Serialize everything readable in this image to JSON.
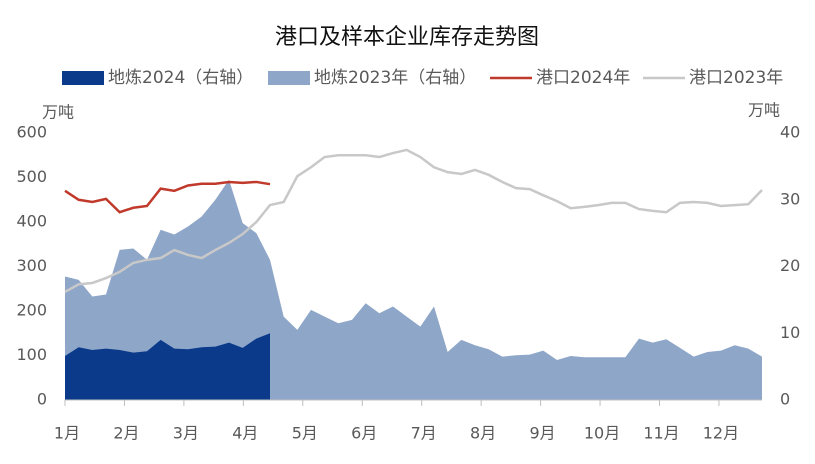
{
  "chart_data": {
    "type": "line-area",
    "title": "港口及样本企业库存走势图",
    "y_label": "万吨",
    "y2_label": "万吨",
    "x": [
      1,
      2,
      3,
      4,
      5,
      6,
      7,
      8,
      9,
      10,
      11,
      12,
      13,
      14,
      15,
      16,
      17,
      18,
      19,
      20,
      21,
      22,
      23,
      24,
      25,
      26,
      27,
      28,
      29,
      30,
      31,
      32,
      33,
      34,
      35,
      36,
      37,
      38,
      39,
      40,
      41,
      42,
      43,
      44,
      45,
      46,
      47,
      48,
      49,
      50,
      51,
      52
    ],
    "xlim": [
      1,
      52
    ],
    "xticks": [
      {
        "value": 1,
        "label": "1月"
      },
      {
        "value": 5.35,
        "label": "2月"
      },
      {
        "value": 9.7,
        "label": "3月"
      },
      {
        "value": 14.05,
        "label": "4月"
      },
      {
        "value": 18.4,
        "label": "5月"
      },
      {
        "value": 22.75,
        "label": "6月"
      },
      {
        "value": 27.1,
        "label": "7月"
      },
      {
        "value": 31.45,
        "label": "8月"
      },
      {
        "value": 35.8,
        "label": "9月"
      },
      {
        "value": 40.15,
        "label": "10月"
      },
      {
        "value": 44.5,
        "label": "11月"
      },
      {
        "value": 48.85,
        "label": "12月"
      }
    ],
    "ylim": [
      0,
      600
    ],
    "yticks": [
      0,
      100,
      200,
      300,
      400,
      500,
      600
    ],
    "y2lim": [
      0,
      40
    ],
    "y2ticks": [
      0,
      10,
      20,
      30,
      40
    ],
    "series": [
      {
        "name": "地炼2023年（右轴）",
        "color": "#8ea6c8",
        "style": "area",
        "axis": "y2",
        "values": [
          18.5,
          18,
          15.5,
          15.8,
          22.5,
          22.7,
          21,
          25.5,
          24.8,
          26,
          27.5,
          30,
          33,
          26.5,
          25,
          21,
          12.5,
          10.5,
          13.5,
          12.5,
          11.5,
          12,
          14.5,
          13,
          14,
          12.5,
          11,
          14,
          7.2,
          9,
          8.2,
          7.6,
          6.5,
          6.7,
          6.8,
          7.4,
          6,
          6.6,
          6.4,
          6.4,
          6.4,
          6.4,
          9.2,
          8.6,
          9.1,
          7.8,
          6.5,
          7.2,
          7.4,
          8.2,
          7.7,
          6.5
        ]
      },
      {
        "name": "地炼2024（右轴）",
        "color": "#0b3a8a",
        "style": "area",
        "axis": "y2",
        "values": [
          6.6,
          7.9,
          7.5,
          7.7,
          7.5,
          7.1,
          7.3,
          9,
          7.7,
          7.6,
          7.9,
          8,
          8.6,
          7.8,
          9.2,
          10,
          null,
          null,
          null,
          null,
          null,
          null,
          null,
          null,
          null,
          null,
          null,
          null,
          null,
          null,
          null,
          null,
          null,
          null,
          null,
          null,
          null,
          null,
          null,
          null,
          null,
          null,
          null,
          null,
          null,
          null,
          null,
          null,
          null,
          null,
          null,
          null
        ]
      },
      {
        "name": "港口2023年",
        "color": "#c8c8c8",
        "style": "line",
        "values": [
          243,
          260,
          263,
          274,
          288,
          308,
          315,
          319,
          337,
          326,
          319,
          337,
          353,
          373,
          400,
          438,
          445,
          503,
          523,
          546,
          550,
          550,
          550,
          546,
          555,
          562,
          546,
          523,
          512,
          508,
          517,
          506,
          490,
          476,
          474,
          460,
          447,
          431,
          434,
          438,
          443,
          443,
          429,
          425,
          422,
          443,
          445,
          443,
          436,
          438,
          440,
          472
        ]
      },
      {
        "name": "港口2024年",
        "color": "#c0392b",
        "style": "line",
        "values": [
          470,
          450,
          445,
          452,
          422,
          432,
          436,
          475,
          470,
          482,
          486,
          486,
          490,
          488,
          490,
          485,
          null,
          null,
          null,
          null,
          null,
          null,
          null,
          null,
          null,
          null,
          null,
          null,
          null,
          null,
          null,
          null,
          null,
          null,
          null,
          null,
          null,
          null,
          null,
          null,
          null,
          null,
          null,
          null,
          null,
          null,
          null,
          null,
          null,
          null,
          null,
          null
        ]
      }
    ],
    "legend_order": [
      1,
      0,
      3,
      2
    ]
  }
}
